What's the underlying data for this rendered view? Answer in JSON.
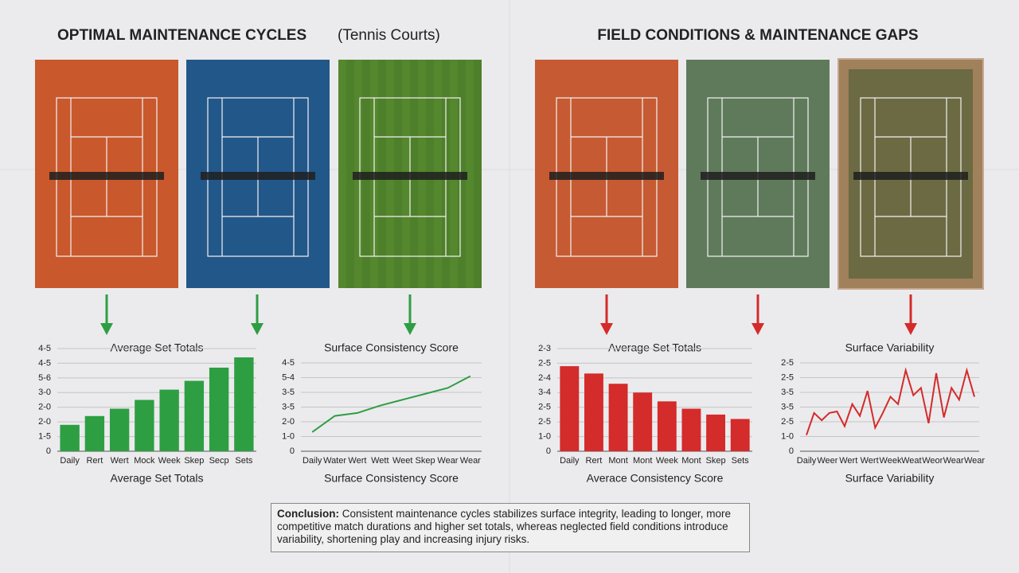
{
  "header": {
    "left_title": "OPTIMAL MAINTENANCE CYCLES",
    "left_note": "(Tennis Courts)",
    "right_title": "FIELD CONDITIONS & MAINTENANCE GAPS"
  },
  "chart_data": [
    {
      "type": "bar",
      "title": "Average Set Totals",
      "x_label": "Average Set Totals",
      "color": "#2e9e43",
      "grid": true,
      "categories": [
        "Daily",
        "Rert",
        "Wert",
        "Mock",
        "Week",
        "Skep",
        "Secp",
        "Sets"
      ],
      "values": [
        1.8,
        2.4,
        2.9,
        3.5,
        4.2,
        4.8,
        5.7,
        6.4
      ],
      "ylim": [
        0,
        7
      ],
      "yticks": [
        0,
        {
          "value": 1,
          "label": "1-5"
        },
        {
          "value": 2,
          "label": "2-0"
        },
        {
          "value": 3,
          "label": "2-0"
        },
        {
          "value": 4,
          "label": "3-0"
        },
        {
          "value": 5,
          "label": "5-6"
        },
        {
          "value": 6,
          "label": "4-5"
        },
        {
          "value": 7,
          "label": "4-5"
        }
      ]
    },
    {
      "type": "line",
      "title": "Surface Consistency Score",
      "x_label": "Surface Consistency Score",
      "color": "#2e9e43",
      "grid": true,
      "categories": [
        "Daily",
        "Water",
        "Wert",
        "Wett",
        "Weet",
        "Skep",
        "Wear",
        "Wear"
      ],
      "values": [
        1.3,
        2.4,
        2.6,
        3.1,
        3.5,
        3.9,
        4.3,
        5.1
      ],
      "ylim": [
        0,
        6
      ],
      "yticks": [
        0,
        {
          "value": 1,
          "label": "1-0"
        },
        {
          "value": 2,
          "label": "2-0"
        },
        {
          "value": 3,
          "label": "3-5"
        },
        {
          "value": 4,
          "label": "3-5"
        },
        {
          "value": 5,
          "label": "5-4"
        },
        {
          "value": 6,
          "label": "4-5"
        }
      ]
    },
    {
      "type": "bar",
      "title": "Average Set Totals",
      "x_label": "Averace Consistency Score",
      "color": "#d42b2b",
      "grid": true,
      "categories": [
        "Daily",
        "Rert",
        "Mont",
        "Mont",
        "Week",
        "Mont",
        "Skep",
        "Sets"
      ],
      "values": [
        5.8,
        5.3,
        4.6,
        4.0,
        3.4,
        2.9,
        2.5,
        2.2
      ],
      "ylim": [
        0,
        7
      ],
      "yticks": [
        0,
        {
          "value": 1,
          "label": "1-0"
        },
        {
          "value": 2,
          "label": "2-5"
        },
        {
          "value": 3,
          "label": "2-5"
        },
        {
          "value": 4,
          "label": "3-4"
        },
        {
          "value": 5,
          "label": "2-4"
        },
        {
          "value": 6,
          "label": "2-5"
        },
        {
          "value": 7,
          "label": "2-3"
        }
      ]
    },
    {
      "type": "xyline",
      "title": "Surface Variability",
      "x_label": "Surface Variability",
      "color": "#d42b2b",
      "grid": true,
      "x": [
        0,
        1,
        2,
        3,
        4,
        5,
        6,
        7,
        8,
        9,
        10,
        11,
        12,
        13,
        14,
        15,
        16,
        17,
        18,
        19,
        20,
        21,
        22
      ],
      "values": [
        1.1,
        2.6,
        2.1,
        2.6,
        2.7,
        1.7,
        3.2,
        2.4,
        4.1,
        1.6,
        2.6,
        3.7,
        3.2,
        5.5,
        3.8,
        4.3,
        1.9,
        5.3,
        2.3,
        4.3,
        3.5,
        5.5,
        3.7
      ],
      "xlim": [
        0,
        22
      ],
      "xticks": [
        {
          "value": 0,
          "label": "Daily"
        },
        {
          "value": 2.75,
          "label": "Weer"
        },
        {
          "value": 5.5,
          "label": "Wert"
        },
        {
          "value": 8.25,
          "label": "Wert"
        },
        {
          "value": 11,
          "label": "Week"
        },
        {
          "value": 13.75,
          "label": "Weat"
        },
        {
          "value": 16.5,
          "label": "Weor"
        },
        {
          "value": 19.25,
          "label": "Wear"
        },
        {
          "value": 22,
          "label": "Wear"
        }
      ],
      "ylim": [
        0,
        6
      ],
      "yticks": [
        0,
        {
          "value": 1,
          "label": "1-0"
        },
        {
          "value": 2,
          "label": "2-5"
        },
        {
          "value": 3,
          "label": "3-5"
        },
        {
          "value": 4,
          "label": "3-5"
        },
        {
          "value": 5,
          "label": "2-5"
        },
        {
          "value": 6,
          "label": "2-5"
        }
      ]
    }
  ],
  "conclusion": {
    "label": "Conclusion:",
    "text": "Consistent maintenance cycles stabilizes surface integrity, leading to longer, more competitive match durations and higher set totals, whereas neglected field conditions introduce variability, shortening play and increasing injury risks."
  }
}
